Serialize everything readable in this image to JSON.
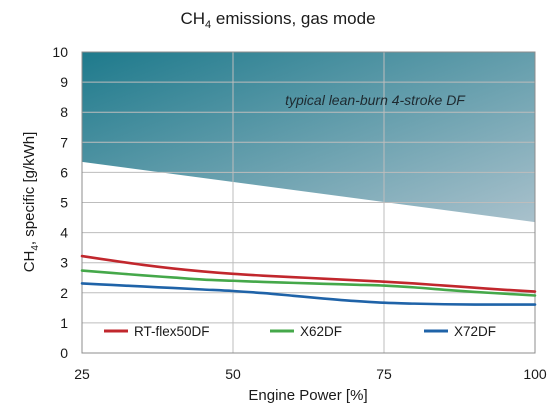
{
  "chart_data": {
    "type": "line",
    "title_main": "CH",
    "title_sub": "4",
    "title_rest": " emissions, gas mode",
    "xlabel": "Engine Power [%]",
    "ylabel_main": "CH",
    "ylabel_sub": "4",
    "ylabel_rest": ", specific [g/kWh]",
    "xlim": [
      25,
      100
    ],
    "ylim": [
      0,
      10
    ],
    "xticks": [
      25,
      50,
      75,
      100
    ],
    "yticks": [
      0,
      1,
      2,
      3,
      4,
      5,
      6,
      7,
      8,
      9,
      10
    ],
    "grid": true,
    "legend_position": "bottom",
    "shaded_region": {
      "label": "typical lean-burn 4-stroke DF",
      "x": [
        25,
        100
      ],
      "lower_y": [
        6.35,
        4.35
      ],
      "upper_y": 10,
      "color_dark": "#1e7a8c",
      "color_light": "#a9c1cc"
    },
    "series": [
      {
        "name": "RT-flex50DF",
        "color": "#c1272d",
        "x": [
          25,
          30,
          35,
          40,
          45,
          50,
          55,
          60,
          65,
          70,
          75,
          80,
          85,
          90,
          95,
          100
        ],
        "y": [
          3.22,
          3.07,
          2.93,
          2.81,
          2.71,
          2.63,
          2.57,
          2.52,
          2.47,
          2.42,
          2.37,
          2.31,
          2.24,
          2.17,
          2.1,
          2.04
        ]
      },
      {
        "name": "X62DF",
        "color": "#45a84a",
        "x": [
          25,
          30,
          35,
          40,
          45,
          50,
          55,
          60,
          65,
          70,
          75,
          80,
          85,
          90,
          95,
          100
        ],
        "y": [
          2.74,
          2.66,
          2.58,
          2.51,
          2.44,
          2.4,
          2.36,
          2.33,
          2.3,
          2.27,
          2.24,
          2.18,
          2.1,
          2.03,
          1.97,
          1.91
        ]
      },
      {
        "name": "X72DF",
        "color": "#1f63a8",
        "x": [
          25,
          30,
          35,
          40,
          45,
          50,
          55,
          60,
          65,
          70,
          75,
          80,
          85,
          90,
          95,
          100
        ],
        "y": [
          2.31,
          2.26,
          2.21,
          2.16,
          2.11,
          2.06,
          1.99,
          1.9,
          1.81,
          1.73,
          1.67,
          1.64,
          1.62,
          1.61,
          1.61,
          1.61
        ]
      }
    ]
  }
}
